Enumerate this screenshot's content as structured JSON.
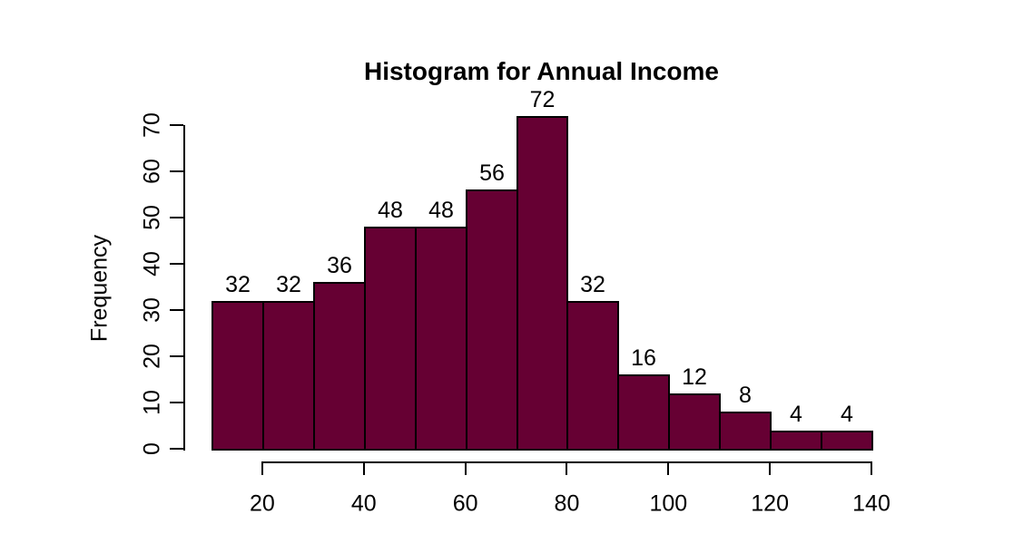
{
  "page": {
    "background": "#ffffff"
  },
  "chart_data": {
    "type": "bar",
    "subtype": "histogram",
    "title": "Histogram for Annual Income",
    "xlabel": "",
    "ylabel": "Frequency",
    "bin_edges": [
      10,
      20,
      30,
      40,
      50,
      60,
      70,
      80,
      90,
      100,
      110,
      120,
      130,
      140
    ],
    "values": [
      32,
      32,
      36,
      48,
      48,
      56,
      72,
      32,
      16,
      12,
      8,
      4,
      4
    ],
    "bar_labels_shown": true,
    "x_ticks": [
      20,
      40,
      60,
      80,
      100,
      120,
      140
    ],
    "y_ticks": [
      0,
      10,
      20,
      30,
      40,
      50,
      60,
      70
    ],
    "xlim": [
      10,
      140
    ],
    "ylim": [
      0,
      72
    ],
    "grid": false,
    "legend": false,
    "bar_fill": "#660033",
    "bar_stroke": "#000000",
    "axis_color": "#000000",
    "text_color": "#000000"
  }
}
